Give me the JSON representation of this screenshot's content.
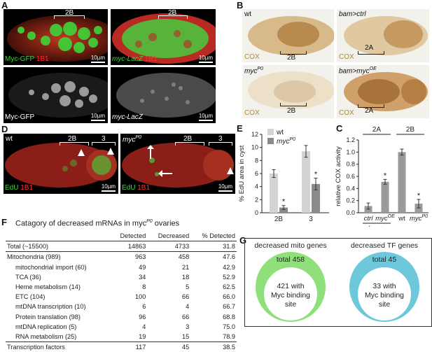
{
  "panels": {
    "A": {
      "label": "A",
      "images": [
        {
          "caption_parts": [
            "Myc-GFP",
            " 1B1"
          ],
          "bracket_label": "2B",
          "scale": "10µm"
        },
        {
          "caption_parts": [
            "myc-LacZ",
            " 1B1"
          ],
          "bracket_label": "2B",
          "scale": "10µm"
        },
        {
          "caption": "Myc-GFP",
          "scale": "10µm"
        },
        {
          "caption": "myc-LacZ",
          "scale": "10µm"
        }
      ]
    },
    "B": {
      "label": "B",
      "images": [
        {
          "genotype": "wt",
          "stain": "COX",
          "bracket_label": "2B"
        },
        {
          "genotype": "bam>ctrl",
          "stain": "COX",
          "bracket_label": "2A"
        },
        {
          "genotype_base": "myc",
          "genotype_sup": "P0",
          "stain": "COX",
          "bracket_label": "2B"
        },
        {
          "genotype_base": "bam>myc",
          "genotype_sup": "OE",
          "stain": "COX",
          "bracket_label": "2A"
        }
      ]
    },
    "C": {
      "label": "C",
      "group_labels": [
        "2A",
        "2B"
      ],
      "bottom_group": "bam>"
    },
    "D": {
      "label": "D",
      "images": [
        {
          "genotype": "wt",
          "caption_parts": [
            "EdU",
            " 1B1"
          ],
          "brackets": [
            "2B",
            "3"
          ],
          "scale": "10µm"
        },
        {
          "genotype_base": "myc",
          "genotype_sup": "P0",
          "caption_parts": [
            "EdU",
            " 1B1"
          ],
          "brackets": [
            "2B",
            "3"
          ],
          "scale": "10µm"
        }
      ]
    },
    "E": {
      "label": "E"
    },
    "F": {
      "label": "F",
      "title": "Catagory of decreased mRNAs in myc",
      "title_sup": "P0",
      "title_end": " ovaries",
      "columns": [
        "",
        "Detected",
        "Decreased",
        "% Detected"
      ],
      "rows": [
        {
          "name": "Total (~15500)",
          "detected": "14863",
          "decreased": "4733",
          "pct": "31.8",
          "indent": false
        },
        {
          "name": "Mitochondria (989)",
          "detected": "963",
          "decreased": "458",
          "pct": "47.6",
          "indent": false
        },
        {
          "name": "mitochondrial import (60)",
          "detected": "49",
          "decreased": "21",
          "pct": "42.9",
          "indent": true
        },
        {
          "name": "TCA (36)",
          "detected": "34",
          "decreased": "18",
          "pct": "52.9",
          "indent": true
        },
        {
          "name": "Heme metabolism (14)",
          "detected": "8",
          "decreased": "5",
          "pct": "62.5",
          "indent": true
        },
        {
          "name": "ETC (104)",
          "detected": "100",
          "decreased": "66",
          "pct": "66.0",
          "indent": true
        },
        {
          "name": "mtDNA transcription (10)",
          "detected": "6",
          "decreased": "4",
          "pct": "66.7",
          "indent": true
        },
        {
          "name": "Protein translation (98)",
          "detected": "96",
          "decreased": "66",
          "pct": "68.8",
          "indent": true
        },
        {
          "name": "mtDNA replication (5)",
          "detected": "4",
          "decreased": "3",
          "pct": "75.0",
          "indent": true
        },
        {
          "name": "RNA metabolism (25)",
          "detected": "19",
          "decreased": "15",
          "pct": "78.9",
          "indent": true
        },
        {
          "name": "Transcription factors",
          "detected": "117",
          "decreased": "45",
          "pct": "38.5",
          "indent": false
        }
      ]
    },
    "G": {
      "label": "G",
      "diagrams": [
        {
          "title": "decreased mito genes",
          "outer": "total 458",
          "inner_lines": [
            "421 with",
            "Myc binding",
            "site"
          ],
          "color": "#8fe07a"
        },
        {
          "title": "decreased TF genes",
          "outer": "total 45",
          "inner_lines": [
            "33 with",
            "Myc binding",
            "site"
          ],
          "color": "#6ec8dc"
        }
      ]
    }
  },
  "chart_data": [
    {
      "type": "bar",
      "panel": "E",
      "title": "",
      "ylabel": "% EdU area in cyst",
      "xlabel": "",
      "categories": [
        "2B",
        "3"
      ],
      "ylim": [
        0,
        12
      ],
      "yticks": [
        0,
        2,
        4,
        6,
        8,
        10,
        12
      ],
      "series": [
        {
          "name": "wt",
          "color": "#d3d3d3",
          "values": [
            6.0,
            9.4
          ],
          "errors": [
            0.6,
            0.9
          ]
        },
        {
          "name_base": "myc",
          "name_sup": "P0",
          "color": "#8a8a8a",
          "values": [
            0.8,
            4.4
          ],
          "errors": [
            0.3,
            0.9
          ],
          "significant": [
            "*",
            "*"
          ]
        }
      ],
      "legend": "top-left"
    },
    {
      "type": "bar",
      "panel": "C",
      "title": "",
      "ylabel": "relative COX activity",
      "xlabel": "",
      "categories": [
        "ctrl",
        "myc^OE",
        "wt",
        "myc^P0"
      ],
      "category_parts": [
        {
          "base": "ctrl",
          "sup": ""
        },
        {
          "base": "myc",
          "sup": "OE"
        },
        {
          "base": "wt",
          "sup": ""
        },
        {
          "base": "myc",
          "sup": "P0"
        }
      ],
      "ylim": [
        0,
        1.2
      ],
      "yticks": [
        "0.0",
        "0.2",
        "0.4",
        "0.6",
        "0.8",
        "1.0",
        "1.2"
      ],
      "values": [
        0.11,
        0.51,
        1.0,
        0.15
      ],
      "errors": [
        0.05,
        0.04,
        0.05,
        0.07
      ],
      "colors": [
        "#9a9a9a",
        "#9a9a9a",
        "#9a9a9a",
        "#9a9a9a"
      ],
      "significant": [
        "",
        "*",
        "",
        "*"
      ]
    }
  ]
}
